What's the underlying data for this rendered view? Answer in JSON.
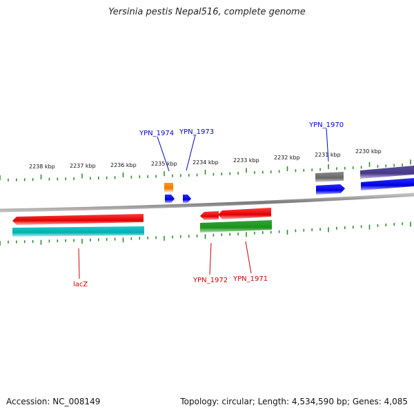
{
  "title": "Yersinia pestis Nepal516, complete genome",
  "footer": {
    "accession": "Accession: NC_008149",
    "summary": "Topology: circular; Length: 4,534,590 bp; Genes: 4,085"
  },
  "colors": {
    "backbone": "#8a8a8a",
    "ticks": "#2e8b2e",
    "forward_label": "#0000cc",
    "reverse_label": "#cc0000"
  },
  "scale_labels": [
    "2238 kbp",
    "2237 kbp",
    "2236 kbp",
    "2235 kbp",
    "2234 kbp",
    "2233 kbp",
    "2232 kbp",
    "2231 kbp",
    "2230 kbp"
  ],
  "gene_labels": {
    "ypn_1974": "YPN_1974",
    "ypn_1973": "YPN_1973",
    "ypn_1970": "YPN_1970",
    "lacz": "lacZ",
    "ypn_1972": "YPN_1972",
    "ypn_1971": "YPN_1971"
  }
}
